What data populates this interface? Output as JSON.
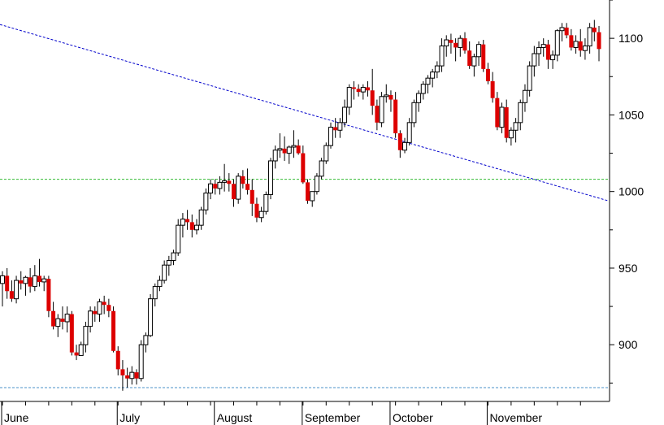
{
  "chart_data": {
    "type": "candlestick",
    "title": "",
    "xlabel": "",
    "ylabel": "",
    "ylim": [
      863,
      1125
    ],
    "y_ticks": [
      900,
      950,
      1000,
      1050,
      1100
    ],
    "month_labels": [
      "June",
      "July",
      "August",
      "September",
      "October",
      "November"
    ],
    "grid": false,
    "colors": {
      "up_fill": "#ffffff",
      "down_fill": "#dd0000",
      "candle_outline": "#000000",
      "trendline": "#0000cc",
      "support_line": "#4a90c8",
      "resistance_line": "#33bb33"
    },
    "horizontal_lines": [
      {
        "value": 872,
        "style": "dashed",
        "color": "#4a90c8"
      },
      {
        "value": 1008,
        "style": "dashed",
        "color": "#33bb33"
      }
    ],
    "trendline": {
      "start_value": 1109,
      "end_value": 994,
      "style": "dashed",
      "color": "#0000cc"
    },
    "candles": [
      [
        940,
        948,
        925,
        945
      ],
      [
        945,
        950,
        930,
        935
      ],
      [
        935,
        942,
        928,
        930
      ],
      [
        930,
        945,
        927,
        942
      ],
      [
        942,
        948,
        936,
        940
      ],
      [
        940,
        945,
        932,
        944
      ],
      [
        944,
        950,
        934,
        938
      ],
      [
        938,
        952,
        935,
        945
      ],
      [
        945,
        956,
        938,
        941
      ],
      [
        941,
        945,
        935,
        943
      ],
      [
        943,
        945,
        918,
        922
      ],
      [
        922,
        928,
        910,
        912
      ],
      [
        912,
        920,
        905,
        917
      ],
      [
        917,
        925,
        910,
        915
      ],
      [
        915,
        925,
        908,
        920
      ],
      [
        920,
        922,
        893,
        895
      ],
      [
        895,
        900,
        890,
        893
      ],
      [
        893,
        902,
        893,
        900
      ],
      [
        900,
        915,
        895,
        912
      ],
      [
        912,
        925,
        908,
        922
      ],
      [
        922,
        925,
        915,
        920
      ],
      [
        920,
        930,
        915,
        928
      ],
      [
        928,
        932,
        920,
        926
      ],
      [
        926,
        930,
        918,
        922
      ],
      [
        922,
        925,
        895,
        896
      ],
      [
        896,
        899,
        880,
        884
      ],
      [
        884,
        890,
        870,
        880
      ],
      [
        880,
        885,
        872,
        878
      ],
      [
        878,
        886,
        874,
        882
      ],
      [
        882,
        884,
        874,
        878
      ],
      [
        878,
        903,
        876,
        900
      ],
      [
        900,
        908,
        895,
        906
      ],
      [
        906,
        933,
        905,
        930
      ],
      [
        930,
        940,
        925,
        938
      ],
      [
        938,
        945,
        935,
        942
      ],
      [
        942,
        955,
        940,
        952
      ],
      [
        952,
        958,
        945,
        955
      ],
      [
        955,
        962,
        952,
        960
      ],
      [
        960,
        982,
        958,
        978
      ],
      [
        978,
        986,
        970,
        982
      ],
      [
        982,
        988,
        975,
        980
      ],
      [
        980,
        985,
        970,
        975
      ],
      [
        975,
        982,
        972,
        978
      ],
      [
        978,
        990,
        975,
        988
      ],
      [
        988,
        1002,
        985,
        999
      ],
      [
        999,
        1008,
        995,
        1005
      ],
      [
        1005,
        1008,
        998,
        1002
      ],
      [
        1002,
        1010,
        998,
        1006
      ],
      [
        1006,
        1018,
        1000,
        1007
      ],
      [
        1007,
        1012,
        1000,
        1005
      ],
      [
        1005,
        1008,
        990,
        995
      ],
      [
        995,
        1012,
        992,
        1010
      ],
      [
        1010,
        1014,
        1002,
        1005
      ],
      [
        1005,
        1015,
        998,
        1001
      ],
      [
        1001,
        1008,
        984,
        992
      ],
      [
        992,
        996,
        980,
        983
      ],
      [
        983,
        990,
        980,
        987
      ],
      [
        987,
        1000,
        985,
        998
      ],
      [
        998,
        1022,
        995,
        1020
      ],
      [
        1020,
        1030,
        1015,
        1027
      ],
      [
        1027,
        1038,
        1022,
        1028
      ],
      [
        1028,
        1036,
        1020,
        1025
      ],
      [
        1025,
        1030,
        1018,
        1029
      ],
      [
        1029,
        1040,
        1022,
        1030
      ],
      [
        1030,
        1034,
        1024,
        1025
      ],
      [
        1025,
        1030,
        1005,
        1006
      ],
      [
        1006,
        1008,
        992,
        994
      ],
      [
        994,
        998,
        990,
        1000
      ],
      [
        1000,
        1012,
        998,
        1010
      ],
      [
        1010,
        1022,
        1008,
        1020
      ],
      [
        1020,
        1032,
        1018,
        1030
      ],
      [
        1030,
        1045,
        1028,
        1042
      ],
      [
        1042,
        1048,
        1035,
        1040
      ],
      [
        1040,
        1048,
        1035,
        1045
      ],
      [
        1045,
        1060,
        1042,
        1055
      ],
      [
        1055,
        1070,
        1050,
        1068
      ],
      [
        1068,
        1072,
        1060,
        1067
      ],
      [
        1067,
        1070,
        1062,
        1065
      ],
      [
        1065,
        1070,
        1060,
        1068
      ],
      [
        1068,
        1072,
        1062,
        1066
      ],
      [
        1066,
        1080,
        1050,
        1056
      ],
      [
        1056,
        1060,
        1040,
        1045
      ],
      [
        1045,
        1065,
        1042,
        1062
      ],
      [
        1062,
        1070,
        1058,
        1063
      ],
      [
        1063,
        1066,
        1052,
        1060
      ],
      [
        1060,
        1065,
        1035,
        1038
      ],
      [
        1038,
        1040,
        1022,
        1027
      ],
      [
        1027,
        1035,
        1025,
        1032
      ],
      [
        1032,
        1048,
        1030,
        1045
      ],
      [
        1045,
        1060,
        1042,
        1058
      ],
      [
        1058,
        1066,
        1052,
        1064
      ],
      [
        1064,
        1072,
        1060,
        1070
      ],
      [
        1070,
        1076,
        1064,
        1074
      ],
      [
        1074,
        1080,
        1068,
        1078
      ],
      [
        1078,
        1085,
        1074,
        1082
      ],
      [
        1082,
        1100,
        1078,
        1095
      ],
      [
        1095,
        1102,
        1088,
        1099
      ],
      [
        1099,
        1103,
        1090,
        1097
      ],
      [
        1097,
        1100,
        1085,
        1094
      ],
      [
        1094,
        1102,
        1088,
        1100
      ],
      [
        1100,
        1104,
        1090,
        1092
      ],
      [
        1092,
        1098,
        1080,
        1082
      ],
      [
        1082,
        1090,
        1075,
        1088
      ],
      [
        1088,
        1098,
        1082,
        1096
      ],
      [
        1096,
        1099,
        1078,
        1080
      ],
      [
        1080,
        1084,
        1070,
        1072
      ],
      [
        1072,
        1078,
        1058,
        1061
      ],
      [
        1061,
        1065,
        1040,
        1042
      ],
      [
        1042,
        1058,
        1038,
        1055
      ],
      [
        1055,
        1060,
        1032,
        1035
      ],
      [
        1035,
        1042,
        1030,
        1040
      ],
      [
        1040,
        1048,
        1032,
        1045
      ],
      [
        1045,
        1060,
        1040,
        1058
      ],
      [
        1058,
        1070,
        1052,
        1066
      ],
      [
        1066,
        1085,
        1062,
        1082
      ],
      [
        1082,
        1095,
        1075,
        1090
      ],
      [
        1090,
        1098,
        1082,
        1094
      ],
      [
        1094,
        1100,
        1088,
        1096
      ],
      [
        1096,
        1099,
        1080,
        1086
      ],
      [
        1086,
        1092,
        1080,
        1089
      ],
      [
        1089,
        1106,
        1085,
        1105
      ],
      [
        1105,
        1110,
        1098,
        1107
      ],
      [
        1107,
        1110,
        1100,
        1102
      ],
      [
        1102,
        1106,
        1092,
        1094
      ],
      [
        1094,
        1102,
        1090,
        1098
      ],
      [
        1098,
        1106,
        1088,
        1092
      ],
      [
        1092,
        1100,
        1086,
        1095
      ],
      [
        1095,
        1110,
        1090,
        1107
      ],
      [
        1107,
        1112,
        1098,
        1104
      ],
      [
        1104,
        1108,
        1085,
        1093
      ]
    ],
    "month_starts": [
      0,
      25,
      46,
      65,
      84,
      105
    ]
  }
}
